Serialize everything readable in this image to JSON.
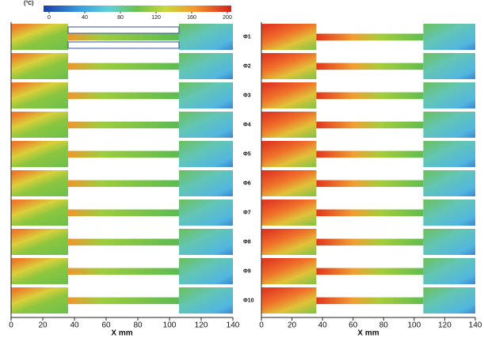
{
  "colorbar": {
    "label": "(°C)",
    "lim": [
      0,
      200
    ],
    "ticks": [
      0,
      40,
      80,
      120,
      160,
      200
    ]
  },
  "row_labels": [
    "Φ1",
    "Φ2",
    "Φ3",
    "Φ4",
    "Φ5",
    "Φ6",
    "Φ7",
    "Φ8",
    "Φ9",
    "Φ10"
  ],
  "chart_data": [
    {
      "type": "contour",
      "xlabel": "X mm",
      "xlim": [
        0,
        140
      ],
      "xticks": [
        0,
        20,
        40,
        60,
        80,
        100,
        120,
        140
      ]
    },
    {
      "type": "contour",
      "xlabel": "X mm",
      "xlim": [
        0,
        140
      ],
      "xticks": [
        0,
        20,
        40,
        60,
        80,
        100,
        120,
        140
      ]
    }
  ]
}
